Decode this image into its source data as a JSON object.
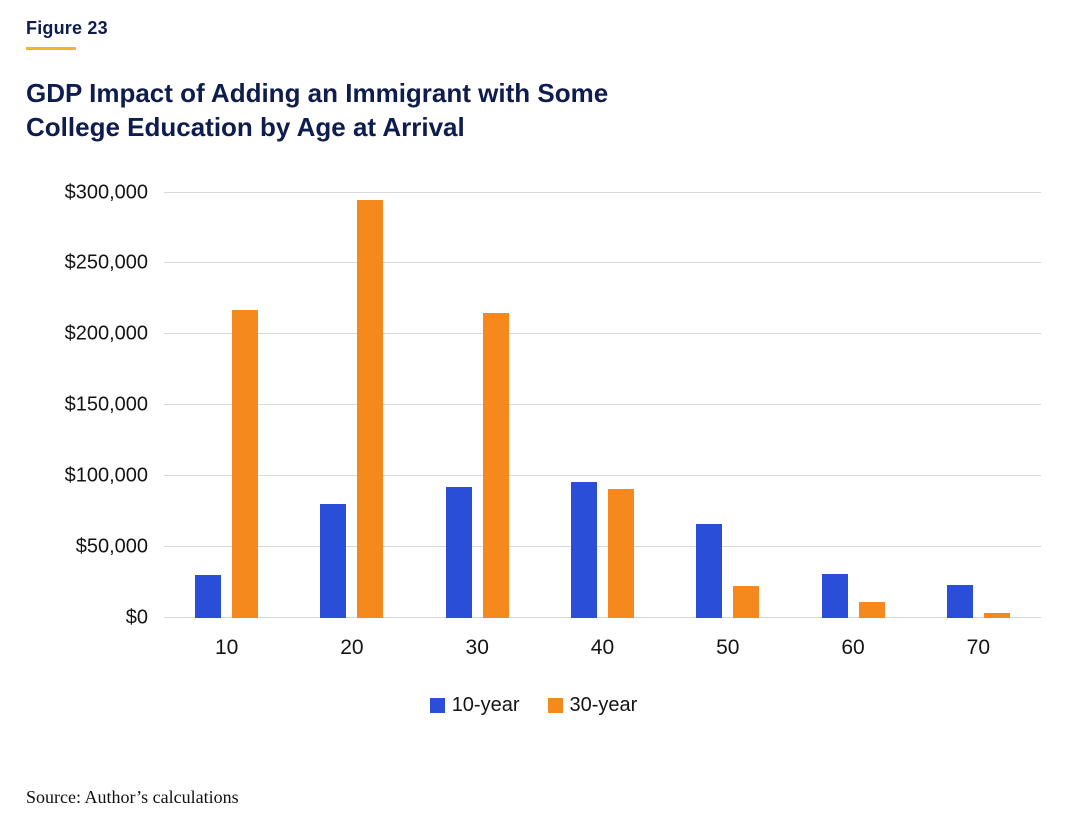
{
  "figure_label": "Figure 23",
  "title": "GDP Impact of Adding an Immigrant with Some College Education by Age at Arrival",
  "source": "Source: Author’s calculations",
  "colors": {
    "series_blue": "#2b4ed8",
    "series_orange": "#f6891e",
    "title_navy": "#0e1c4e",
    "accent_gold": "#f2b629",
    "gridline": "#d8d8d8"
  },
  "chart_data": {
    "type": "bar",
    "categories": [
      "10",
      "20",
      "30",
      "40",
      "50",
      "60",
      "70"
    ],
    "series": [
      {
        "name": "10-year",
        "color": "#2b4ed8",
        "values": [
          30000,
          80000,
          92000,
          96000,
          66000,
          31000,
          23000
        ]
      },
      {
        "name": "30-year",
        "color": "#f6891e",
        "values": [
          217000,
          295000,
          215000,
          91000,
          22000,
          11000,
          3000
        ]
      }
    ],
    "title": "GDP Impact of Adding an Immigrant with Some College Education by Age at Arrival",
    "xlabel": "",
    "ylabel": "",
    "ylim": [
      0,
      300000
    ],
    "ytick_step": 50000,
    "yticks": [
      "$0",
      "$50,000",
      "$100,000",
      "$150,000",
      "$200,000",
      "$250,000",
      "$300,000"
    ],
    "grid": true,
    "legend_position": "bottom"
  }
}
